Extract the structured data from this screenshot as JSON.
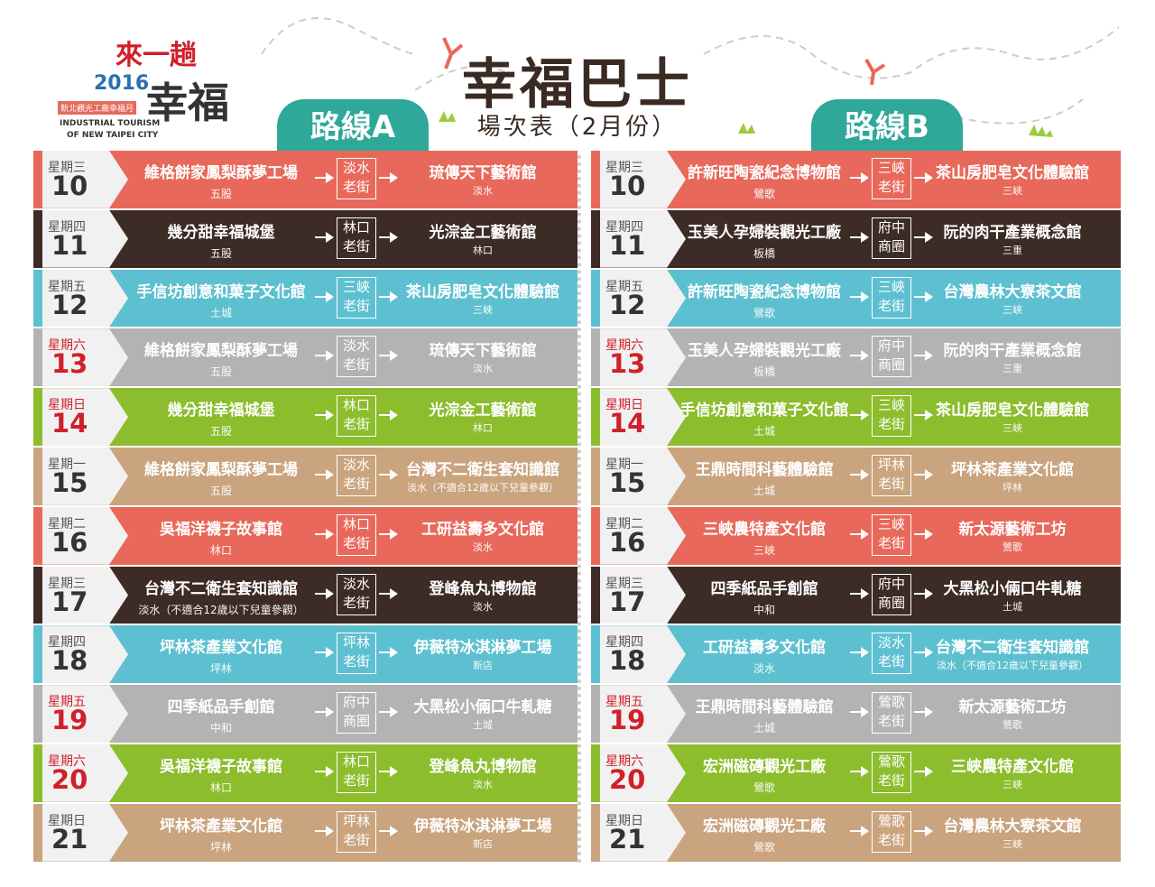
{
  "logo": {
    "line1": "來一趟",
    "year": "2016",
    "line2": "幸福",
    "tag": "新北觀光工廠幸福月",
    "en1": "INDUSTRIAL TOURISM",
    "en2": "OF NEW TAIPEI CITY"
  },
  "header": {
    "title": "幸福巴士",
    "subtitle": "場次表（2月份）"
  },
  "routes": [
    {
      "name": "路線A",
      "rows": [
        {
          "weekday": "星期三",
          "date": "10",
          "from": {
            "name": "維格餅家鳳梨酥夢工場",
            "area": "五股"
          },
          "stop": [
            "淡水",
            "老街"
          ],
          "to": {
            "name": "琉傳天下藝術館",
            "area": "淡水"
          }
        },
        {
          "weekday": "星期四",
          "date": "11",
          "from": {
            "name": "幾分甜幸福城堡",
            "area": "五股"
          },
          "stop": [
            "林口",
            "老街"
          ],
          "to": {
            "name": "光淙金工藝術館",
            "area": "林口"
          }
        },
        {
          "weekday": "星期五",
          "date": "12",
          "from": {
            "name": "手信坊創意和菓子文化館",
            "area": "土城"
          },
          "stop": [
            "三峽",
            "老街"
          ],
          "to": {
            "name": "茶山房肥皂文化體驗館",
            "area": "三峽"
          }
        },
        {
          "weekday": "星期六",
          "date": "13",
          "from": {
            "name": "維格餅家鳳梨酥夢工場",
            "area": "五股"
          },
          "stop": [
            "淡水",
            "老街"
          ],
          "to": {
            "name": "琉傳天下藝術館",
            "area": "淡水"
          }
        },
        {
          "weekday": "星期日",
          "date": "14",
          "from": {
            "name": "幾分甜幸福城堡",
            "area": "五股"
          },
          "stop": [
            "林口",
            "老街"
          ],
          "to": {
            "name": "光淙金工藝術館",
            "area": "林口"
          }
        },
        {
          "weekday": "星期一",
          "date": "15",
          "from": {
            "name": "維格餅家鳳梨酥夢工場",
            "area": "五股"
          },
          "stop": [
            "淡水",
            "老街"
          ],
          "to": {
            "name": "台灣不二衛生套知識館",
            "area": "淡水（不適合12歲以下兒童參觀）"
          }
        },
        {
          "weekday": "星期二",
          "date": "16",
          "from": {
            "name": "吳福洋襪子故事館",
            "area": "林口"
          },
          "stop": [
            "林口",
            "老街"
          ],
          "to": {
            "name": "工研益壽多文化館",
            "area": "淡水"
          }
        },
        {
          "weekday": "星期三",
          "date": "17",
          "from": {
            "name": "台灣不二衛生套知識館",
            "area": "淡水（不適合12歲以下兒童參觀）"
          },
          "stop": [
            "淡水",
            "老街"
          ],
          "to": {
            "name": "登峰魚丸博物館",
            "area": "淡水"
          }
        },
        {
          "weekday": "星期四",
          "date": "18",
          "from": {
            "name": "坪林茶產業文化館",
            "area": "坪林"
          },
          "stop": [
            "坪林",
            "老街"
          ],
          "to": {
            "name": "伊薇特冰淇淋夢工場",
            "area": "新店"
          }
        },
        {
          "weekday": "星期五",
          "date": "19",
          "from": {
            "name": "四季紙品手創館",
            "area": "中和"
          },
          "stop": [
            "府中",
            "商圈"
          ],
          "to": {
            "name": "大黑松小倆口牛軋糖",
            "area": "土城"
          }
        },
        {
          "weekday": "星期六",
          "date": "20",
          "from": {
            "name": "吳福洋襪子故事館",
            "area": "林口"
          },
          "stop": [
            "林口",
            "老街"
          ],
          "to": {
            "name": "登峰魚丸博物館",
            "area": "淡水"
          }
        },
        {
          "weekday": "星期日",
          "date": "21",
          "from": {
            "name": "坪林茶產業文化館",
            "area": "坪林"
          },
          "stop": [
            "坪林",
            "老街"
          ],
          "to": {
            "name": "伊薇特冰淇淋夢工場",
            "area": "新店"
          }
        }
      ]
    },
    {
      "name": "路線B",
      "rows": [
        {
          "weekday": "星期三",
          "date": "10",
          "from": {
            "name": "許新旺陶瓷紀念博物館",
            "area": "鶯歌"
          },
          "stop": [
            "三峽",
            "老街"
          ],
          "to": {
            "name": "茶山房肥皂文化體驗館",
            "area": "三峽"
          }
        },
        {
          "weekday": "星期四",
          "date": "11",
          "from": {
            "name": "玉美人孕婦裝觀光工廠",
            "area": "板橋"
          },
          "stop": [
            "府中",
            "商圈"
          ],
          "to": {
            "name": "阮的肉干產業概念館",
            "area": "三重"
          }
        },
        {
          "weekday": "星期五",
          "date": "12",
          "from": {
            "name": "許新旺陶瓷紀念博物館",
            "area": "鶯歌"
          },
          "stop": [
            "三峽",
            "老街"
          ],
          "to": {
            "name": "台灣農林大寮茶文館",
            "area": "三峽"
          }
        },
        {
          "weekday": "星期六",
          "date": "13",
          "from": {
            "name": "玉美人孕婦裝觀光工廠",
            "area": "板橋"
          },
          "stop": [
            "府中",
            "商圈"
          ],
          "to": {
            "name": "阮的肉干產業概念館",
            "area": "三重"
          }
        },
        {
          "weekday": "星期日",
          "date": "14",
          "from": {
            "name": "手信坊創意和菓子文化館",
            "area": "土城"
          },
          "stop": [
            "三峽",
            "老街"
          ],
          "to": {
            "name": "茶山房肥皂文化體驗館",
            "area": "三峽"
          }
        },
        {
          "weekday": "星期一",
          "date": "15",
          "from": {
            "name": "王鼎時間科藝體驗館",
            "area": "土城"
          },
          "stop": [
            "坪林",
            "老街"
          ],
          "to": {
            "name": "坪林茶產業文化館",
            "area": "坪林"
          }
        },
        {
          "weekday": "星期二",
          "date": "16",
          "from": {
            "name": "三峽農特產文化館",
            "area": "三峽"
          },
          "stop": [
            "三峽",
            "老街"
          ],
          "to": {
            "name": "新太源藝術工坊",
            "area": "鶯歌"
          }
        },
        {
          "weekday": "星期三",
          "date": "17",
          "from": {
            "name": "四季紙品手創館",
            "area": "中和"
          },
          "stop": [
            "府中",
            "商圈"
          ],
          "to": {
            "name": "大黑松小倆口牛軋糖",
            "area": "土城"
          }
        },
        {
          "weekday": "星期四",
          "date": "18",
          "from": {
            "name": "工研益壽多文化館",
            "area": "淡水"
          },
          "stop": [
            "淡水",
            "老街"
          ],
          "to": {
            "name": "台灣不二衛生套知識館",
            "area": "淡水（不適合12歲以下兒童參觀）"
          }
        },
        {
          "weekday": "星期五",
          "date": "19",
          "from": {
            "name": "王鼎時間科藝體驗館",
            "area": "土城"
          },
          "stop": [
            "鶯歌",
            "老街"
          ],
          "to": {
            "name": "新太源藝術工坊",
            "area": "鶯歌"
          }
        },
        {
          "weekday": "星期六",
          "date": "20",
          "from": {
            "name": "宏洲磁磚觀光工廠",
            "area": "鶯歌"
          },
          "stop": [
            "鶯歌",
            "老街"
          ],
          "to": {
            "name": "三峽農特產文化館",
            "area": "三峽"
          }
        },
        {
          "weekday": "星期日",
          "date": "21",
          "from": {
            "name": "宏洲磁磚觀光工廠",
            "area": "鶯歌"
          },
          "stop": [
            "鶯歌",
            "老街"
          ],
          "to": {
            "name": "台灣農林大寮茶文館",
            "area": "三峽"
          }
        }
      ]
    }
  ]
}
